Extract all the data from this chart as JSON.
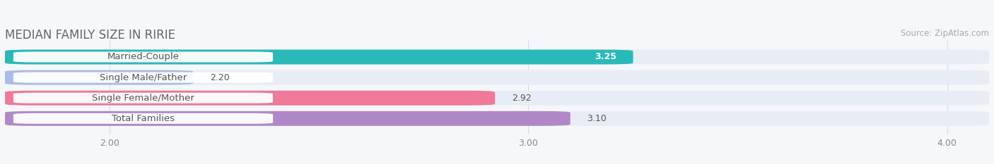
{
  "title": "MEDIAN FAMILY SIZE IN RIRIE",
  "source": "Source: ZipAtlas.com",
  "categories": [
    "Married-Couple",
    "Single Male/Father",
    "Single Female/Mother",
    "Total Families"
  ],
  "values": [
    3.25,
    2.2,
    2.92,
    3.1
  ],
  "bar_colors": [
    "#2ab8b8",
    "#aabde8",
    "#f07898",
    "#b088c8"
  ],
  "value_labels": [
    "3.25",
    "2.20",
    "2.92",
    "3.10"
  ],
  "value_inside": [
    true,
    false,
    false,
    false
  ],
  "xmin": 1.75,
  "xmax": 4.1,
  "xticks": [
    2.0,
    3.0,
    4.0
  ],
  "xtick_labels": [
    "2.00",
    "3.00",
    "4.00"
  ],
  "bar_height": 0.72,
  "background_color": "#f5f7fa",
  "bar_bg_color": "#e8edf5",
  "title_fontsize": 12,
  "source_fontsize": 8.5,
  "label_fontsize": 9.5,
  "value_fontsize": 9
}
